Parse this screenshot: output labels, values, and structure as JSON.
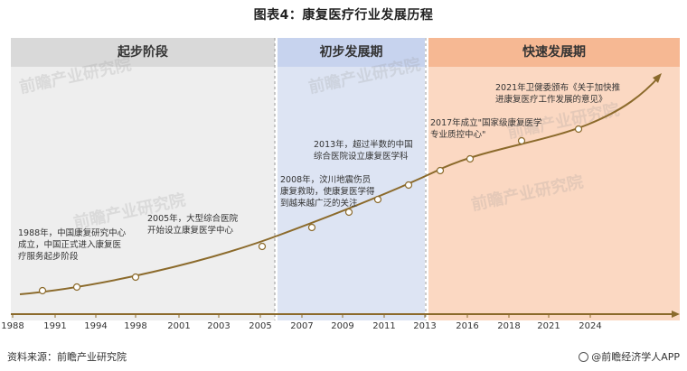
{
  "title": "图表4：康复医疗行业发展历程",
  "stages": [
    "起步阶段",
    "初步发展期",
    "快速发展期"
  ],
  "axis": {
    "years": [
      "1988",
      "1991",
      "1994",
      "1998",
      "2001",
      "2003",
      "2005",
      "2007",
      "2009",
      "2011",
      "2013",
      "2016",
      "2018",
      "2021",
      "2024"
    ]
  },
  "events": [
    {
      "text": "1988年，中国康复研究中心\n成立，中国正式进入康复医\n疗服务起步阶段"
    },
    {
      "text": "2005年，大型综合医院\n开始设立康复医学中心"
    },
    {
      "text": "2008年，汶川地震伤员\n康复救助，使康复医学得\n到越来越广泛的关注"
    },
    {
      "text": "2013年，超过半数的中国\n综合医院设立康复医学科"
    },
    {
      "text": "2017年成立\"国家级康复医学\n专业质控中心\""
    },
    {
      "text": "2021年卫健委颁布《关于加快推\n进康复医疗工作发展的意见》"
    }
  ],
  "watermarks": [
    "前瞻产业研究院",
    "前瞻产业研究院",
    "前瞻产业研究院",
    "前瞻产业研究院",
    "前瞻产业研究院"
  ],
  "footer": {
    "source": "资料来源：前瞻产业研究院",
    "brand": "@前瞻经济学人APP"
  },
  "colors": {
    "curve": "#8b6a2b",
    "marker_fill": "#ffffff",
    "axis": "#8b6a2b"
  }
}
